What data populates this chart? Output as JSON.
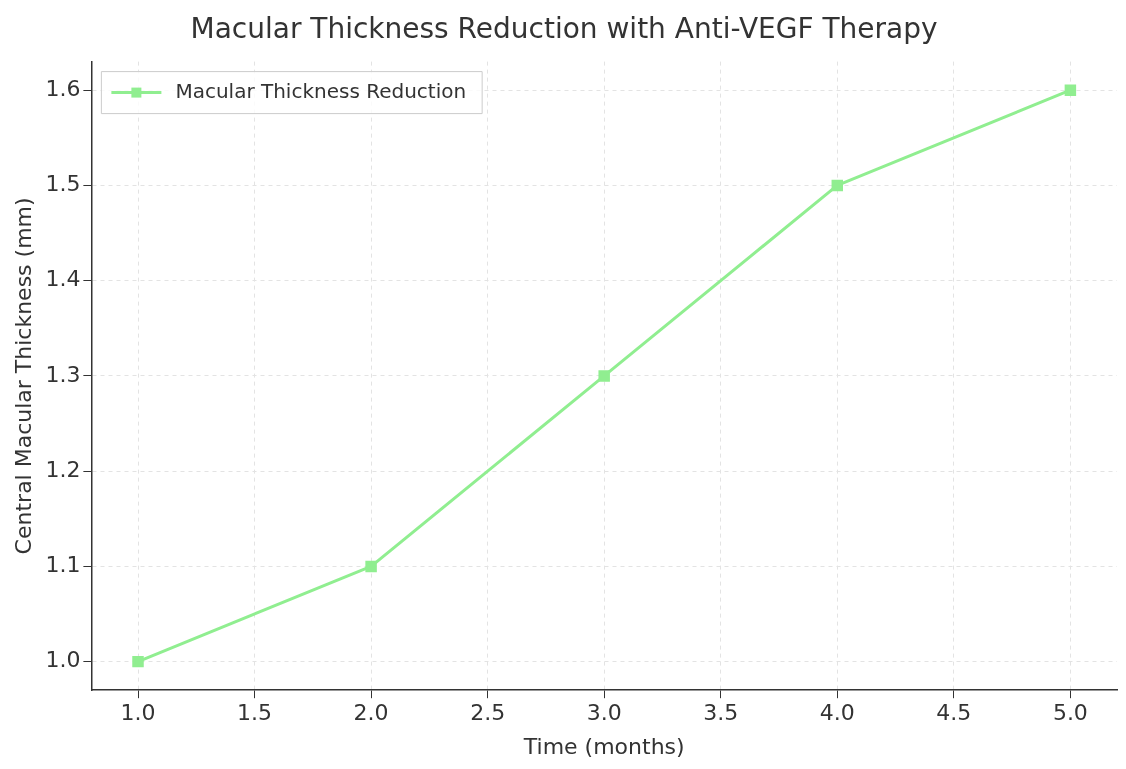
{
  "chart_data": {
    "type": "line",
    "title": "Macular Thickness Reduction with Anti-VEGF Therapy",
    "xlabel": "Time (months)",
    "ylabel": "Central Macular Thickness (mm)",
    "x": [
      1,
      2,
      3,
      4,
      5
    ],
    "series": [
      {
        "name": "Macular Thickness Reduction",
        "color": "#90ee90",
        "values": [
          1.0,
          1.1,
          1.3,
          1.5,
          1.6
        ]
      }
    ],
    "xlim": [
      0.8,
      5.2
    ],
    "xticks": [
      {
        "value": 1,
        "label": "1.0"
      },
      {
        "value": 1.5,
        "label": "1.5"
      },
      {
        "value": 2,
        "label": "2.0"
      },
      {
        "value": 2.5,
        "label": "2.5"
      },
      {
        "value": 3,
        "label": "3.0"
      },
      {
        "value": 3.5,
        "label": "3.5"
      },
      {
        "value": 4,
        "label": "4.0"
      },
      {
        "value": 4.5,
        "label": "4.5"
      },
      {
        "value": 5,
        "label": "5.0"
      }
    ],
    "ylim": [
      0.97,
      1.63
    ],
    "yticks": [
      {
        "value": 1,
        "label": "1.0"
      },
      1.1,
      1.2,
      1.3,
      1.4,
      1.5,
      1.6
    ],
    "grid": true,
    "legend": "top left",
    "marker": "square",
    "line_style": "solid"
  }
}
